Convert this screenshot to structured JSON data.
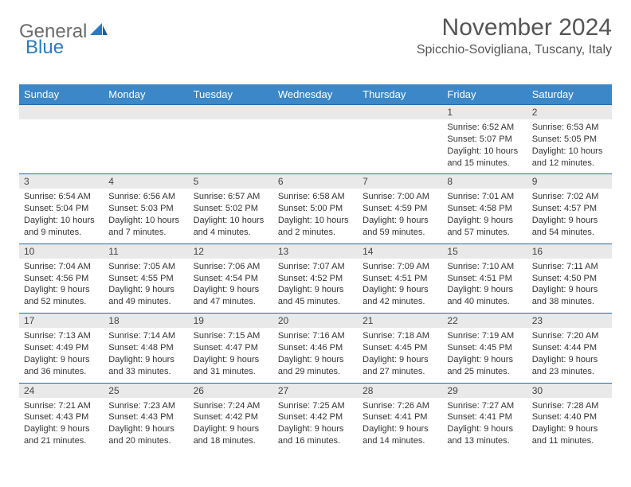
{
  "logo": {
    "part1": "General",
    "part2": "Blue"
  },
  "title": "November 2024",
  "location": "Spicchio-Sovigliana, Tuscany, Italy",
  "colors": {
    "header_bg": "#3b87c8",
    "header_text": "#ffffff",
    "daynum_bg": "#e9e9e9",
    "border": "#2a6aa5",
    "logo_gray": "#6b6b6b",
    "logo_blue": "#2a7cc2"
  },
  "weekdays": [
    "Sunday",
    "Monday",
    "Tuesday",
    "Wednesday",
    "Thursday",
    "Friday",
    "Saturday"
  ],
  "weeks": [
    [
      null,
      null,
      null,
      null,
      null,
      {
        "n": "1",
        "sr": "Sunrise: 6:52 AM",
        "ss": "Sunset: 5:07 PM",
        "d1": "Daylight: 10 hours",
        "d2": "and 15 minutes."
      },
      {
        "n": "2",
        "sr": "Sunrise: 6:53 AM",
        "ss": "Sunset: 5:05 PM",
        "d1": "Daylight: 10 hours",
        "d2": "and 12 minutes."
      }
    ],
    [
      {
        "n": "3",
        "sr": "Sunrise: 6:54 AM",
        "ss": "Sunset: 5:04 PM",
        "d1": "Daylight: 10 hours",
        "d2": "and 9 minutes."
      },
      {
        "n": "4",
        "sr": "Sunrise: 6:56 AM",
        "ss": "Sunset: 5:03 PM",
        "d1": "Daylight: 10 hours",
        "d2": "and 7 minutes."
      },
      {
        "n": "5",
        "sr": "Sunrise: 6:57 AM",
        "ss": "Sunset: 5:02 PM",
        "d1": "Daylight: 10 hours",
        "d2": "and 4 minutes."
      },
      {
        "n": "6",
        "sr": "Sunrise: 6:58 AM",
        "ss": "Sunset: 5:00 PM",
        "d1": "Daylight: 10 hours",
        "d2": "and 2 minutes."
      },
      {
        "n": "7",
        "sr": "Sunrise: 7:00 AM",
        "ss": "Sunset: 4:59 PM",
        "d1": "Daylight: 9 hours",
        "d2": "and 59 minutes."
      },
      {
        "n": "8",
        "sr": "Sunrise: 7:01 AM",
        "ss": "Sunset: 4:58 PM",
        "d1": "Daylight: 9 hours",
        "d2": "and 57 minutes."
      },
      {
        "n": "9",
        "sr": "Sunrise: 7:02 AM",
        "ss": "Sunset: 4:57 PM",
        "d1": "Daylight: 9 hours",
        "d2": "and 54 minutes."
      }
    ],
    [
      {
        "n": "10",
        "sr": "Sunrise: 7:04 AM",
        "ss": "Sunset: 4:56 PM",
        "d1": "Daylight: 9 hours",
        "d2": "and 52 minutes."
      },
      {
        "n": "11",
        "sr": "Sunrise: 7:05 AM",
        "ss": "Sunset: 4:55 PM",
        "d1": "Daylight: 9 hours",
        "d2": "and 49 minutes."
      },
      {
        "n": "12",
        "sr": "Sunrise: 7:06 AM",
        "ss": "Sunset: 4:54 PM",
        "d1": "Daylight: 9 hours",
        "d2": "and 47 minutes."
      },
      {
        "n": "13",
        "sr": "Sunrise: 7:07 AM",
        "ss": "Sunset: 4:52 PM",
        "d1": "Daylight: 9 hours",
        "d2": "and 45 minutes."
      },
      {
        "n": "14",
        "sr": "Sunrise: 7:09 AM",
        "ss": "Sunset: 4:51 PM",
        "d1": "Daylight: 9 hours",
        "d2": "and 42 minutes."
      },
      {
        "n": "15",
        "sr": "Sunrise: 7:10 AM",
        "ss": "Sunset: 4:51 PM",
        "d1": "Daylight: 9 hours",
        "d2": "and 40 minutes."
      },
      {
        "n": "16",
        "sr": "Sunrise: 7:11 AM",
        "ss": "Sunset: 4:50 PM",
        "d1": "Daylight: 9 hours",
        "d2": "and 38 minutes."
      }
    ],
    [
      {
        "n": "17",
        "sr": "Sunrise: 7:13 AM",
        "ss": "Sunset: 4:49 PM",
        "d1": "Daylight: 9 hours",
        "d2": "and 36 minutes."
      },
      {
        "n": "18",
        "sr": "Sunrise: 7:14 AM",
        "ss": "Sunset: 4:48 PM",
        "d1": "Daylight: 9 hours",
        "d2": "and 33 minutes."
      },
      {
        "n": "19",
        "sr": "Sunrise: 7:15 AM",
        "ss": "Sunset: 4:47 PM",
        "d1": "Daylight: 9 hours",
        "d2": "and 31 minutes."
      },
      {
        "n": "20",
        "sr": "Sunrise: 7:16 AM",
        "ss": "Sunset: 4:46 PM",
        "d1": "Daylight: 9 hours",
        "d2": "and 29 minutes."
      },
      {
        "n": "21",
        "sr": "Sunrise: 7:18 AM",
        "ss": "Sunset: 4:45 PM",
        "d1": "Daylight: 9 hours",
        "d2": "and 27 minutes."
      },
      {
        "n": "22",
        "sr": "Sunrise: 7:19 AM",
        "ss": "Sunset: 4:45 PM",
        "d1": "Daylight: 9 hours",
        "d2": "and 25 minutes."
      },
      {
        "n": "23",
        "sr": "Sunrise: 7:20 AM",
        "ss": "Sunset: 4:44 PM",
        "d1": "Daylight: 9 hours",
        "d2": "and 23 minutes."
      }
    ],
    [
      {
        "n": "24",
        "sr": "Sunrise: 7:21 AM",
        "ss": "Sunset: 4:43 PM",
        "d1": "Daylight: 9 hours",
        "d2": "and 21 minutes."
      },
      {
        "n": "25",
        "sr": "Sunrise: 7:23 AM",
        "ss": "Sunset: 4:43 PM",
        "d1": "Daylight: 9 hours",
        "d2": "and 20 minutes."
      },
      {
        "n": "26",
        "sr": "Sunrise: 7:24 AM",
        "ss": "Sunset: 4:42 PM",
        "d1": "Daylight: 9 hours",
        "d2": "and 18 minutes."
      },
      {
        "n": "27",
        "sr": "Sunrise: 7:25 AM",
        "ss": "Sunset: 4:42 PM",
        "d1": "Daylight: 9 hours",
        "d2": "and 16 minutes."
      },
      {
        "n": "28",
        "sr": "Sunrise: 7:26 AM",
        "ss": "Sunset: 4:41 PM",
        "d1": "Daylight: 9 hours",
        "d2": "and 14 minutes."
      },
      {
        "n": "29",
        "sr": "Sunrise: 7:27 AM",
        "ss": "Sunset: 4:41 PM",
        "d1": "Daylight: 9 hours",
        "d2": "and 13 minutes."
      },
      {
        "n": "30",
        "sr": "Sunrise: 7:28 AM",
        "ss": "Sunset: 4:40 PM",
        "d1": "Daylight: 9 hours",
        "d2": "and 11 minutes."
      }
    ]
  ]
}
